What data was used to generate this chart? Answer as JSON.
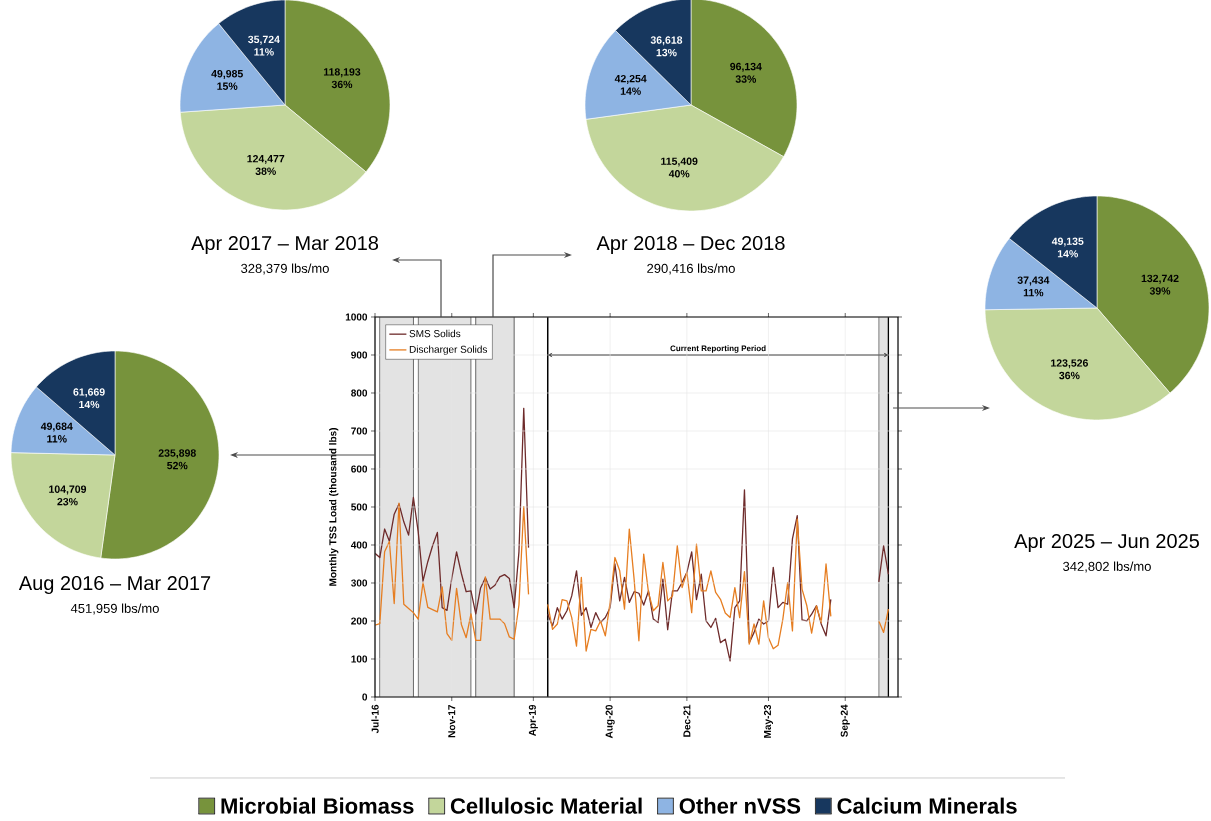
{
  "chart_data": [
    {
      "type": "pie",
      "title": "Apr 2017 – Mar 2018",
      "subtitle": "328,379 lbs/mo",
      "categories": [
        null,
        null,
        null,
        null
      ],
      "values": [
        118193,
        124477,
        49985,
        35724
      ],
      "colors": [
        "#77933c",
        "#c3d69b",
        "#8eb4e3",
        "#17375e"
      ],
      "value_labels": [
        "118,193 36%",
        "124,477 38%",
        "49,985 15%",
        "35,724 11%"
      ]
    },
    {
      "type": "pie",
      "title": "Apr 2018 – Dec 2018",
      "subtitle": "290,416 lbs/mo",
      "categories": [
        null,
        null,
        null,
        null
      ],
      "values": [
        96134,
        115409,
        42254,
        36618
      ],
      "colors": [
        "#77933c",
        "#c3d69b",
        "#8eb4e3",
        "#17375e"
      ],
      "value_labels": [
        "96,134 33%",
        "115,409 40%",
        "42,254 14%",
        "36,618 13%"
      ]
    },
    {
      "type": "line",
      "ylabel": "Monthly TSS Load (thousand lbs)",
      "x": [
        "2016-07",
        "2016-08",
        "2016-09",
        "2016-10",
        "2016-11",
        "2016-12",
        "2017-01",
        "2017-02",
        "2017-03",
        "2017-04",
        "2017-05",
        "2017-06",
        "2017-07",
        "2017-08",
        "2017-09",
        "2017-10",
        "2017-11",
        "2017-12",
        "2018-01",
        "2018-02",
        "2018-03",
        "2018-04",
        "2018-05",
        "2018-06",
        "2018-07",
        "2018-08",
        "2018-09",
        "2018-10",
        "2018-11",
        "2018-12",
        "2019-01",
        "2019-02",
        "2019-03",
        "2019-04",
        "2019-05",
        "2019-06",
        "2019-07",
        "2019-08",
        "2019-09",
        "2019-10",
        "2019-11",
        "2019-12",
        "2020-01",
        "2020-02",
        "2020-03",
        "2020-04",
        "2020-05",
        "2020-06",
        "2020-07",
        "2020-08",
        "2020-09",
        "2020-10",
        "2020-11",
        "2020-12",
        "2021-01",
        "2021-02",
        "2021-03",
        "2021-04",
        "2021-05",
        "2021-06",
        "2021-07",
        "2021-08",
        "2021-09",
        "2021-10",
        "2021-11",
        "2021-12",
        "2022-01",
        "2022-02",
        "2022-03",
        "2022-04",
        "2022-05",
        "2022-06",
        "2022-07",
        "2022-08",
        "2022-09",
        "2022-10",
        "2022-11",
        "2022-12",
        "2023-01",
        "2023-02",
        "2023-03",
        "2023-04",
        "2023-05",
        "2023-06",
        "2023-07",
        "2023-08",
        "2023-09",
        "2023-10",
        "2023-11",
        "2023-12",
        "2024-01",
        "2024-02",
        "2024-03",
        "2024-04",
        "2024-05",
        "2024-06",
        "2024-07",
        "2024-08",
        "2024-09",
        "2024-10",
        "2024-11",
        "2024-12",
        "2025-01",
        "2025-02",
        "2025-03",
        "2025-04",
        "2025-05",
        "2025-06"
      ],
      "series": [
        {
          "name": "SMS Solids",
          "color": "#6e2b2b",
          "values": [
            378,
            367,
            442,
            410,
            481,
            508,
            461,
            426,
            525,
            435,
            305,
            356,
            398,
            433,
            235,
            228,
            312,
            382,
            325,
            277,
            279,
            219,
            287,
            314,
            284,
            294,
            316,
            322,
            312,
            235,
            382,
            760,
            393,
            null,
            null,
            null,
            218,
            187,
            235,
            205,
            227,
            266,
            332,
            215,
            235,
            183,
            222,
            196,
            209,
            235,
            350,
            253,
            315,
            249,
            277,
            273,
            242,
            279,
            205,
            196,
            310,
            177,
            279,
            279,
            301,
            328,
            382,
            256,
            323,
            200,
            183,
            207,
            143,
            152,
            95,
            235,
            253,
            545,
            143,
            170,
            205,
            192,
            200,
            341,
            235,
            249,
            244,
            416,
            477,
            203,
            200,
            218,
            240,
            192,
            161,
            257,
            null,
            null,
            null,
            null,
            null,
            null,
            null,
            null,
            null,
            303,
            398,
            323
          ]
        },
        {
          "name": "Discharger Solids",
          "color": "#e67e22",
          "values": [
            189,
            193,
            382,
            409,
            246,
            510,
            244,
            233,
            222,
            205,
            301,
            236,
            230,
            224,
            290,
            167,
            149,
            286,
            191,
            156,
            219,
            149,
            149,
            316,
            205,
            205,
            205,
            193,
            158,
            152,
            242,
            501,
            270,
            null,
            null,
            null,
            244,
            178,
            192,
            256,
            253,
            209,
            134,
            315,
            121,
            178,
            174,
            200,
            161,
            249,
            367,
            332,
            231,
            442,
            310,
            148,
            376,
            275,
            227,
            240,
            354,
            253,
            266,
            398,
            288,
            328,
            222,
            402,
            279,
            279,
            332,
            275,
            257,
            221,
            209,
            288,
            209,
            330,
            139,
            192,
            139,
            253,
            156,
            127,
            136,
            205,
            301,
            174,
            468,
            284,
            240,
            168,
            240,
            196,
            350,
            212,
            null,
            null,
            null,
            null,
            null,
            null,
            null,
            null,
            null,
            200,
            170,
            231
          ]
        }
      ],
      "xlim": [
        "2016-07",
        "2025-08"
      ],
      "ylim": [
        0,
        1000
      ],
      "xticks": [
        {
          "value": "2016-07",
          "label": "Jul-16"
        },
        {
          "value": "2017-11",
          "label": "Nov-17"
        },
        {
          "value": "2019-04",
          "label": "Apr-19"
        },
        {
          "value": "2020-08",
          "label": "Aug-20"
        },
        {
          "value": "2021-12",
          "label": "Dec-21"
        },
        {
          "value": "2023-05",
          "label": "May-23"
        },
        {
          "value": "2024-09",
          "label": "Sep-24"
        }
      ],
      "yticks": [
        0,
        100,
        200,
        300,
        400,
        500,
        600,
        700,
        800,
        900,
        1000
      ],
      "grid": true,
      "legend": "top left",
      "bands": [
        {
          "axis": "x",
          "from": "2016-08",
          "to": "2017-03",
          "color": "#e3e3e3"
        },
        {
          "axis": "x",
          "from": "2017-04",
          "to": "2018-03",
          "color": "#e3e3e3"
        },
        {
          "axis": "x",
          "from": "2018-04",
          "to": "2018-12",
          "color": "#e3e3e3"
        },
        {
          "axis": "x",
          "from": "2025-04",
          "to": "2025-06",
          "color": "#e3e3e3"
        }
      ],
      "annotations": [
        "Current Reporting Period"
      ],
      "ref_lines": [
        {
          "axis": "x",
          "value": "2019-07",
          "color": "#000000"
        },
        {
          "axis": "x",
          "value": "2025-06",
          "color": "#000000"
        }
      ]
    },
    {
      "type": "pie",
      "title": "Apr 2025 – Jun 2025",
      "subtitle": "342,802 lbs/mo",
      "categories": [
        null,
        null,
        null,
        null
      ],
      "values": [
        132742,
        123526,
        37434,
        49135
      ],
      "colors": [
        "#77933c",
        "#c3d69b",
        "#8eb4e3",
        "#17375e"
      ],
      "value_labels": [
        "132,742 39%",
        "123,526 36%",
        "37,434 11%",
        "49,135 14%"
      ]
    },
    {
      "type": "pie",
      "title": "Aug 2016 – Mar 2017",
      "subtitle": "451,959 lbs/mo",
      "categories": [
        "Microbial Biomass",
        "Cellulosic Material",
        "Other nVSS",
        "Calcium Minerals"
      ],
      "values": [
        235898,
        104709,
        49684,
        61669
      ],
      "colors": [
        "#77933c",
        "#c3d69b",
        "#8eb4e3",
        "#17375e"
      ],
      "value_labels": [
        "235,898 52%",
        "104,709 23%",
        "49,684 11%",
        "61,669 14%"
      ],
      "legend": "bottom"
    }
  ]
}
